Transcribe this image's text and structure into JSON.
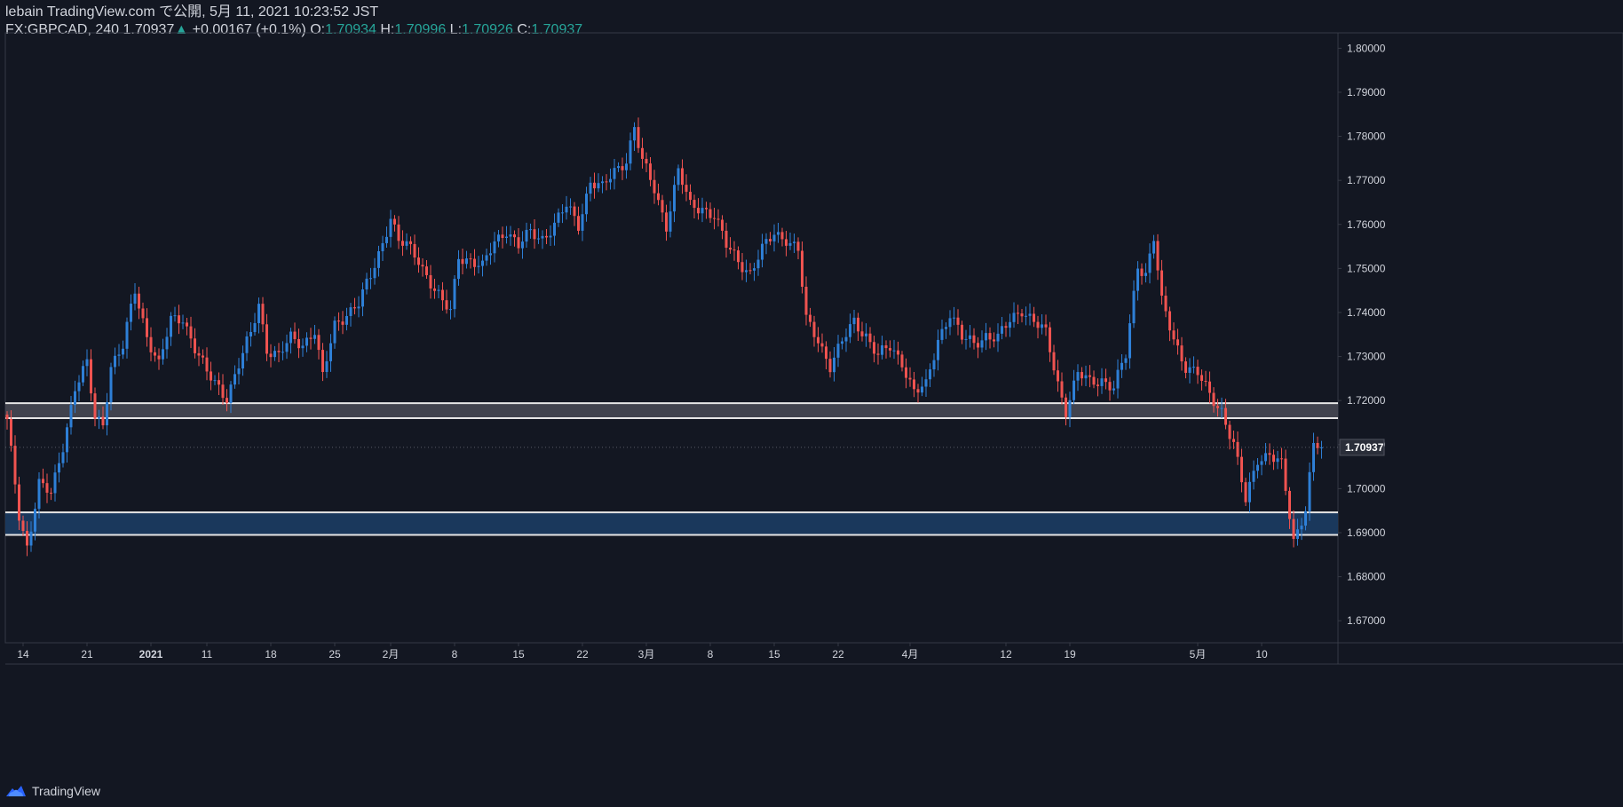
{
  "header": {
    "publish_line": "lebain TradingView.com で公開, 5月 11, 2021 10:23:52 JST",
    "symbol": "FX:GBPCAD, 240",
    "last": "1.70937",
    "change": "+0.00167 (+0.1%)",
    "o_label": "O:",
    "o_value": "1.70934",
    "h_label": "H:",
    "h_value": "1.70996",
    "l_label": "L:",
    "l_value": "1.70926",
    "c_label": "C:",
    "c_value": "1.70937"
  },
  "footer": {
    "brand": "TradingView"
  },
  "colors": {
    "background": "#131722",
    "up": "#2e7fd6",
    "down": "#ef5350",
    "grid_text": "#d1d4dc",
    "axis_line": "#363a45",
    "zone_gray": "#434651",
    "zone_blue": "#1a3a60",
    "zone_border": "#e6e6e6"
  },
  "chart_data": {
    "type": "candlestick",
    "symbol": "FX:GBPCAD",
    "timeframe": "240",
    "ylim": [
      1.665,
      1.8035
    ],
    "y_ticks": [
      "1.67000",
      "1.68000",
      "1.69000",
      "1.70000",
      "1.71000",
      "1.72000",
      "1.73000",
      "1.74000",
      "1.75000",
      "1.76000",
      "1.77000",
      "1.78000",
      "1.79000",
      "1.80000"
    ],
    "x_ticks": [
      {
        "label": "14",
        "bar": 4
      },
      {
        "label": "21",
        "bar": 20
      },
      {
        "label": "2021",
        "bar": 36
      },
      {
        "label": "11",
        "bar": 50
      },
      {
        "label": "18",
        "bar": 66
      },
      {
        "label": "25",
        "bar": 82
      },
      {
        "label": "2月",
        "bar": 96
      },
      {
        "label": "8",
        "bar": 112
      },
      {
        "label": "15",
        "bar": 128
      },
      {
        "label": "22",
        "bar": 144
      },
      {
        "label": "3月",
        "bar": 160
      },
      {
        "label": "8",
        "bar": 176
      },
      {
        "label": "15",
        "bar": 192
      },
      {
        "label": "22",
        "bar": 208
      },
      {
        "label": "4月",
        "bar": 226
      },
      {
        "label": "12",
        "bar": 250
      },
      {
        "label": "19",
        "bar": 266
      },
      {
        "label": "5月",
        "bar": 298
      },
      {
        "label": "10",
        "bar": 314
      }
    ],
    "bar_count": 320,
    "close_path": [
      [
        0,
        1.715
      ],
      [
        3,
        1.694
      ],
      [
        5,
        1.687
      ],
      [
        8,
        1.701
      ],
      [
        11,
        1.6985
      ],
      [
        14,
        1.71
      ],
      [
        17,
        1.723
      ],
      [
        20,
        1.728
      ],
      [
        22,
        1.716
      ],
      [
        24,
        1.715
      ],
      [
        26,
        1.728
      ],
      [
        29,
        1.732
      ],
      [
        32,
        1.745
      ],
      [
        35,
        1.735
      ],
      [
        38,
        1.728
      ],
      [
        41,
        1.738
      ],
      [
        44,
        1.739
      ],
      [
        47,
        1.732
      ],
      [
        50,
        1.726
      ],
      [
        53,
        1.723
      ],
      [
        55,
        1.721
      ],
      [
        58,
        1.728
      ],
      [
        61,
        1.735
      ],
      [
        63,
        1.742
      ],
      [
        65,
        1.732
      ],
      [
        68,
        1.73
      ],
      [
        71,
        1.734
      ],
      [
        74,
        1.733
      ],
      [
        77,
        1.736
      ],
      [
        79,
        1.725
      ],
      [
        82,
        1.737
      ],
      [
        85,
        1.74
      ],
      [
        88,
        1.742
      ],
      [
        91,
        1.748
      ],
      [
        94,
        1.756
      ],
      [
        96,
        1.762
      ],
      [
        98,
        1.756
      ],
      [
        100,
        1.755
      ],
      [
        103,
        1.752
      ],
      [
        106,
        1.747
      ],
      [
        109,
        1.742
      ],
      [
        111,
        1.74
      ],
      [
        113,
        1.753
      ],
      [
        116,
        1.752
      ],
      [
        119,
        1.75
      ],
      [
        122,
        1.756
      ],
      [
        125,
        1.759
      ],
      [
        128,
        1.755
      ],
      [
        131,
        1.758
      ],
      [
        134,
        1.757
      ],
      [
        137,
        1.76
      ],
      [
        140,
        1.764
      ],
      [
        143,
        1.76
      ],
      [
        146,
        1.77
      ],
      [
        149,
        1.768
      ],
      [
        152,
        1.772
      ],
      [
        155,
        1.775
      ],
      [
        157,
        1.782
      ],
      [
        159,
        1.774
      ],
      [
        162,
        1.768
      ],
      [
        165,
        1.76
      ],
      [
        168,
        1.772
      ],
      [
        171,
        1.764
      ],
      [
        174,
        1.764
      ],
      [
        177,
        1.762
      ],
      [
        180,
        1.755
      ],
      [
        183,
        1.752
      ],
      [
        186,
        1.749
      ],
      [
        189,
        1.754
      ],
      [
        192,
        1.758
      ],
      [
        195,
        1.757
      ],
      [
        198,
        1.754
      ],
      [
        200,
        1.738
      ],
      [
        203,
        1.734
      ],
      [
        206,
        1.728
      ],
      [
        209,
        1.733
      ],
      [
        212,
        1.738
      ],
      [
        215,
        1.735
      ],
      [
        218,
        1.73
      ],
      [
        221,
        1.732
      ],
      [
        224,
        1.729
      ],
      [
        227,
        1.722
      ],
      [
        230,
        1.723
      ],
      [
        233,
        1.734
      ],
      [
        236,
        1.74
      ],
      [
        239,
        1.734
      ],
      [
        242,
        1.733
      ],
      [
        245,
        1.735
      ],
      [
        248,
        1.734
      ],
      [
        251,
        1.738
      ],
      [
        254,
        1.741
      ],
      [
        257,
        1.738
      ],
      [
        260,
        1.735
      ],
      [
        263,
        1.724
      ],
      [
        265,
        1.718
      ],
      [
        268,
        1.726
      ],
      [
        271,
        1.724
      ],
      [
        274,
        1.725
      ],
      [
        277,
        1.723
      ],
      [
        280,
        1.73
      ],
      [
        283,
        1.751
      ],
      [
        285,
        1.749
      ],
      [
        287,
        1.757
      ],
      [
        289,
        1.742
      ],
      [
        292,
        1.734
      ],
      [
        295,
        1.728
      ],
      [
        298,
        1.726
      ],
      [
        301,
        1.721
      ],
      [
        304,
        1.718
      ],
      [
        307,
        1.71
      ],
      [
        310,
        1.697
      ],
      [
        313,
        1.707
      ],
      [
        316,
        1.708
      ],
      [
        319,
        1.705
      ],
      [
        322,
        1.688
      ],
      [
        325,
        1.696
      ],
      [
        327,
        1.71
      ],
      [
        329,
        1.7094
      ]
    ],
    "zones": [
      {
        "name": "gray-resistance-zone",
        "top": 1.7194,
        "bottom": 1.716
      },
      {
        "name": "blue-support-zone",
        "top": 1.6946,
        "bottom": 1.6895
      }
    ],
    "last_price": "1.70937",
    "last_value": 1.70937
  }
}
